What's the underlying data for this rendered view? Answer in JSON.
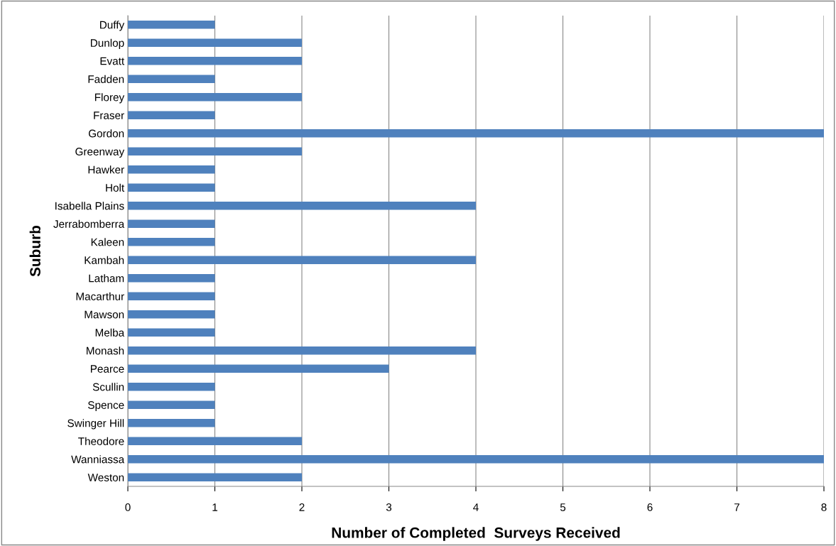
{
  "chart_data": {
    "type": "bar",
    "orientation": "horizontal",
    "xlabel": "Number of Completed  Surveys Received",
    "ylabel": "Suburb",
    "categories": [
      "Duffy",
      "Dunlop",
      "Evatt",
      "Fadden",
      "Florey",
      "Fraser",
      "Gordon",
      "Greenway",
      "Hawker",
      "Holt",
      "Isabella Plains",
      "Jerrabomberra",
      "Kaleen",
      "Kambah",
      "Latham",
      "Macarthur",
      "Mawson",
      "Melba",
      "Monash",
      "Pearce",
      "Scullin",
      "Spence",
      "Swinger Hill",
      "Theodore",
      "Wanniassa",
      "Weston"
    ],
    "values": [
      1,
      2,
      2,
      1,
      2,
      1,
      8,
      2,
      1,
      1,
      4,
      1,
      1,
      4,
      1,
      1,
      1,
      1,
      4,
      3,
      1,
      1,
      1,
      2,
      8,
      2
    ],
    "color": "#4f81bd",
    "xlim": [
      0,
      8
    ],
    "xticks": [
      0,
      1,
      2,
      3,
      4,
      5,
      6,
      7,
      8
    ],
    "grid": "x",
    "legend": false
  }
}
